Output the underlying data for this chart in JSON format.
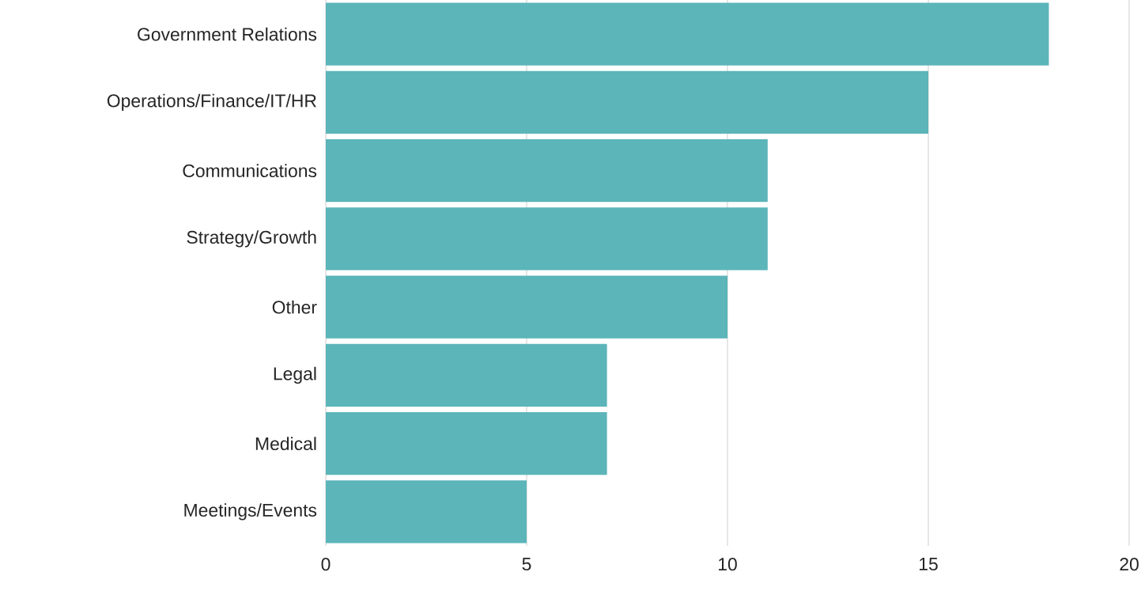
{
  "chart_data": {
    "type": "bar",
    "orientation": "horizontal",
    "categories": [
      "Government Relations",
      "Operations/Finance/IT/HR",
      "Communications",
      "Strategy/Growth",
      "Other",
      "Legal",
      "Medical",
      "Meetings/Events"
    ],
    "values": [
      18,
      15,
      11,
      11,
      10,
      7,
      7,
      5
    ],
    "color": "#5bb5b9",
    "xlim": [
      0,
      20
    ],
    "xticks": [
      0,
      5,
      10,
      15,
      20
    ],
    "grid": "x"
  }
}
